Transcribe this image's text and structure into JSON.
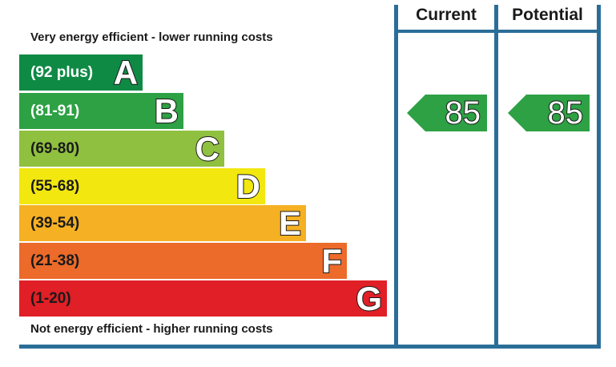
{
  "header": {
    "top_text": "Very energy efficient - lower running costs",
    "bottom_text": "Not energy efficient - higher running costs",
    "current_label": "Current",
    "potential_label": "Potential"
  },
  "chart_data": {
    "type": "bar",
    "categories": [
      "A",
      "B",
      "C",
      "D",
      "E",
      "F",
      "G"
    ],
    "ranges": [
      "(92 plus)",
      "(81-91)",
      "(69-80)",
      "(55-68)",
      "(39-54)",
      "(21-38)",
      "(1-20)"
    ],
    "colors": [
      "#0f8a45",
      "#2da144",
      "#90c03f",
      "#f2e70f",
      "#f5b023",
      "#ec6a2a",
      "#e01f26"
    ],
    "current": {
      "value": "85",
      "band": "B"
    },
    "potential": {
      "value": "85",
      "band": "B"
    }
  }
}
